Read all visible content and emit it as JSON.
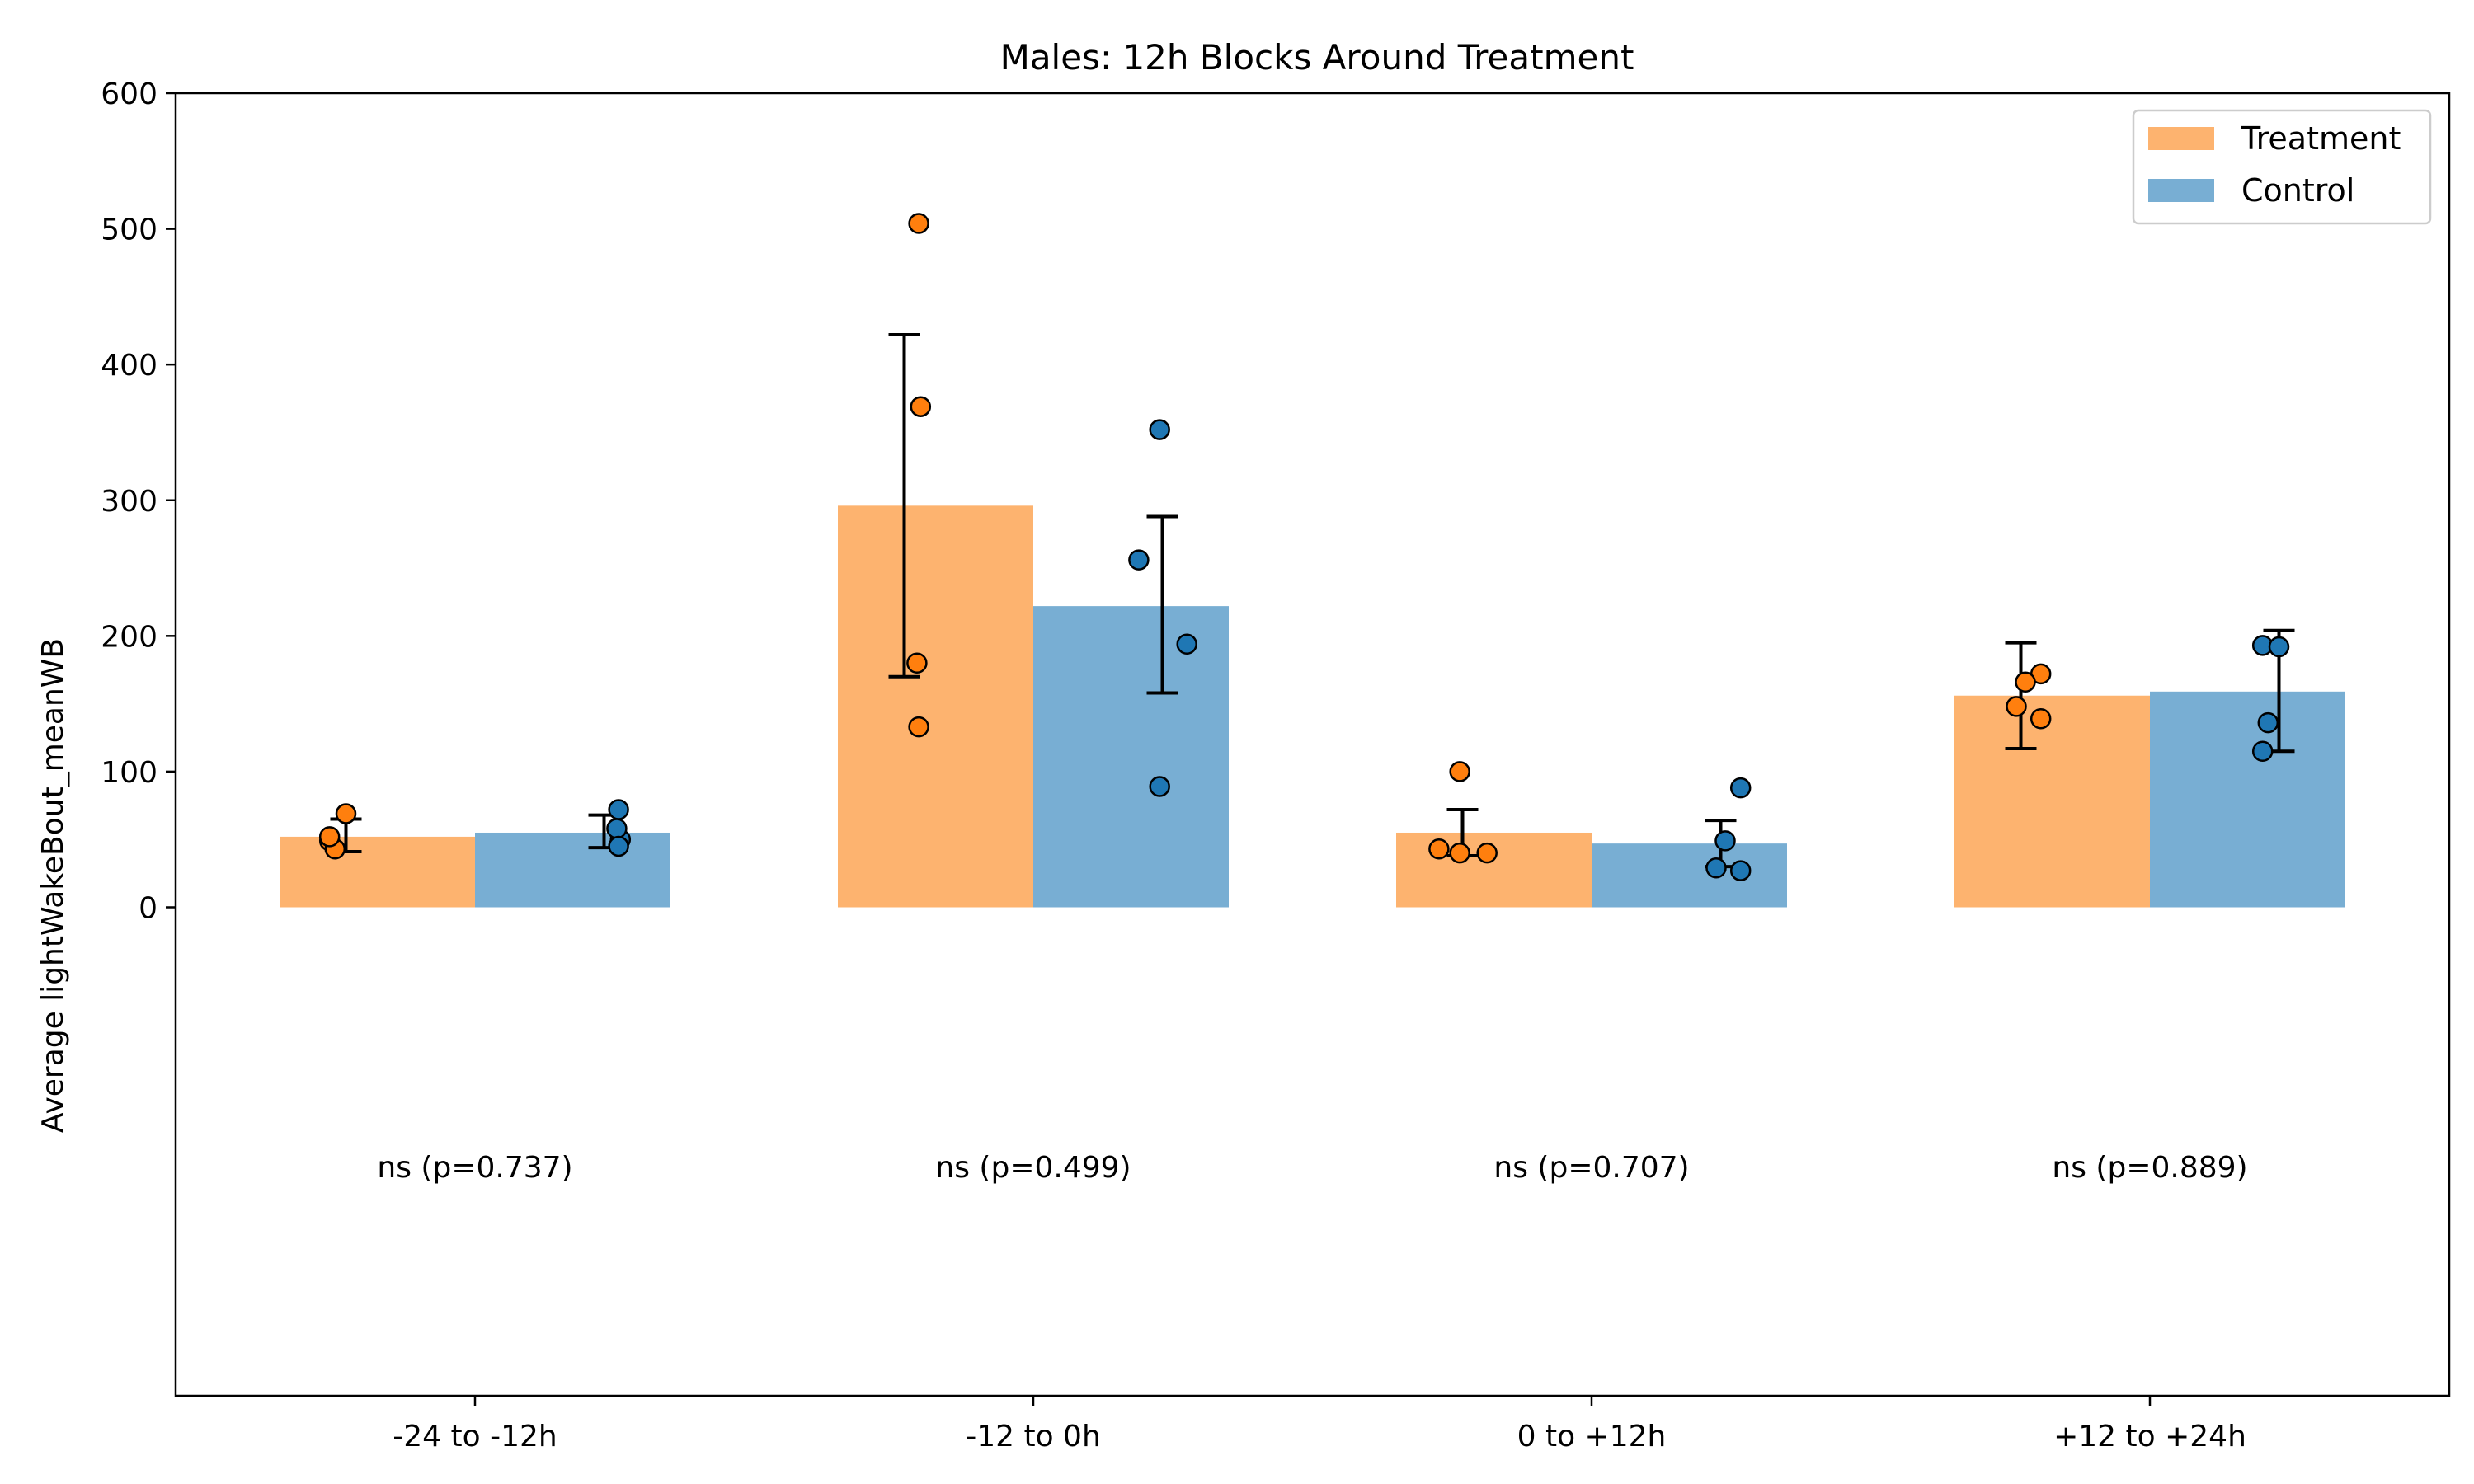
{
  "chart_data": {
    "type": "bar",
    "title": "Males: 12h Blocks Around Treatment",
    "xlabel": "",
    "ylabel": "Average lightWakeBout_meanWB",
    "ylim": [
      -360,
      600
    ],
    "yticks": [
      0,
      100,
      200,
      300,
      400,
      500,
      600
    ],
    "categories": [
      "-24 to -12h",
      "-12 to 0h",
      "0 to +12h",
      "+12 to +24h"
    ],
    "legend_position": "top-right",
    "grid": false,
    "series": [
      {
        "name": "Treatment",
        "bar_color": "#fdb36f",
        "point_color": "#ff7f0e",
        "values": [
          52,
          296,
          55,
          156
        ],
        "error_low": [
          41,
          170,
          38,
          117
        ],
        "error_high": [
          65,
          422,
          72,
          195
        ],
        "points": [
          [
            49,
            69,
            43,
            52
          ],
          [
            504,
            369,
            180,
            133
          ],
          [
            100,
            43,
            40,
            40
          ],
          [
            172,
            166,
            148,
            139
          ]
        ]
      },
      {
        "name": "Control",
        "bar_color": "#78aed3",
        "point_color": "#1f77b4",
        "values": [
          55,
          222,
          47,
          159
        ],
        "error_low": [
          44,
          158,
          30,
          115
        ],
        "error_high": [
          68,
          288,
          64,
          204
        ],
        "points": [
          [
            72,
            50,
            58,
            45
          ],
          [
            352,
            256,
            194,
            89
          ],
          [
            88,
            49,
            29,
            27
          ],
          [
            193,
            192,
            136,
            115
          ]
        ]
      }
    ],
    "annotations": [
      "ns (p=0.737)",
      "ns (p=0.499)",
      "ns (p=0.707)",
      "ns (p=0.889)"
    ]
  }
}
